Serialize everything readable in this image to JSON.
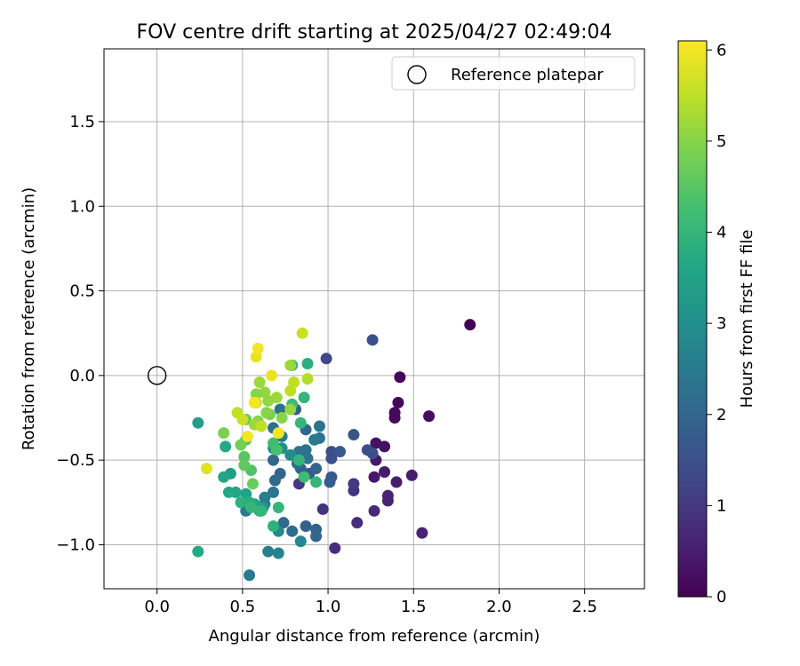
{
  "chart_data": {
    "type": "scatter",
    "title": "FOV centre drift starting at 2025/04/27 02:49:04",
    "xlabel": "Angular distance from reference (arcmin)",
    "ylabel": "Rotation from reference (arcmin)",
    "xlim": [
      -0.31,
      2.85
    ],
    "ylim": [
      -1.26,
      1.93
    ],
    "xticks": [
      0.0,
      0.5,
      1.0,
      1.5,
      2.0,
      2.5
    ],
    "xtick_labels": [
      "0.0",
      "0.5",
      "1.0",
      "1.5",
      "2.0",
      "2.5"
    ],
    "yticks": [
      -1.0,
      -0.5,
      0.0,
      0.5,
      1.0,
      1.5
    ],
    "ytick_labels": [
      "−1.0",
      "−0.5",
      "0.0",
      "0.5",
      "1.0",
      "1.5"
    ],
    "grid": true,
    "legend": {
      "position": "top-right",
      "label": "Reference platepar"
    },
    "reference_point": {
      "x": 0.0,
      "y": 0.0
    },
    "colorbar": {
      "label": "Hours from first FF file",
      "range": [
        0,
        6.1
      ],
      "ticks": [
        0,
        1,
        2,
        3,
        4,
        5,
        6
      ],
      "tick_labels": [
        "0",
        "1",
        "2",
        "3",
        "4",
        "5",
        "6"
      ],
      "colormap": "viridis"
    },
    "series": [
      {
        "points": [
          [
            1.83,
            0.3,
            0.0
          ],
          [
            1.42,
            -0.01,
            0.1
          ],
          [
            1.41,
            -0.16,
            0.1
          ],
          [
            1.39,
            -0.22,
            0.15
          ],
          [
            1.39,
            -0.25,
            0.15
          ],
          [
            1.59,
            -0.24,
            0.2
          ],
          [
            1.33,
            -0.42,
            0.3
          ],
          [
            1.28,
            -0.4,
            0.3
          ],
          [
            1.28,
            -0.5,
            0.4
          ],
          [
            1.27,
            -0.6,
            0.4
          ],
          [
            1.33,
            -0.57,
            0.45
          ],
          [
            1.4,
            -0.63,
            0.5
          ],
          [
            1.49,
            -0.59,
            0.5
          ],
          [
            1.35,
            -0.71,
            0.6
          ],
          [
            1.35,
            -0.74,
            0.6
          ],
          [
            1.27,
            -0.8,
            0.7
          ],
          [
            1.55,
            -0.93,
            0.6
          ],
          [
            1.17,
            -0.87,
            0.8
          ],
          [
            1.04,
            -1.02,
            0.8
          ],
          [
            0.97,
            -0.79,
            0.9
          ],
          [
            1.15,
            -0.68,
            0.9
          ],
          [
            1.15,
            -0.64,
            1.0
          ],
          [
            0.83,
            -0.64,
            1.0
          ],
          [
            0.99,
            0.1,
            1.3
          ],
          [
            1.26,
            0.21,
            1.5
          ],
          [
            1.23,
            -0.44,
            1.5
          ],
          [
            1.26,
            -0.46,
            1.5
          ],
          [
            1.15,
            -0.35,
            1.6
          ],
          [
            1.02,
            -0.45,
            1.5
          ],
          [
            1.02,
            -0.49,
            1.5
          ],
          [
            1.07,
            -0.45,
            1.7
          ],
          [
            1.02,
            -0.6,
            1.7
          ],
          [
            1.01,
            -0.63,
            1.8
          ],
          [
            0.89,
            -0.58,
            1.7
          ],
          [
            0.84,
            -0.55,
            1.9
          ],
          [
            0.93,
            -0.55,
            1.9
          ],
          [
            0.87,
            -0.89,
            1.9
          ],
          [
            0.93,
            -0.91,
            1.9
          ],
          [
            0.93,
            -0.95,
            2.0
          ],
          [
            0.79,
            -0.92,
            2.1
          ],
          [
            0.74,
            -0.87,
            2.1
          ],
          [
            0.82,
            -0.52,
            2.2
          ],
          [
            0.88,
            -0.49,
            2.3
          ],
          [
            0.83,
            -0.45,
            2.3
          ],
          [
            0.87,
            -0.44,
            2.3
          ],
          [
            0.95,
            -0.3,
            2.4
          ],
          [
            0.95,
            -0.37,
            2.4
          ],
          [
            0.92,
            -0.38,
            2.5
          ],
          [
            0.87,
            -0.32,
            2.0
          ],
          [
            0.81,
            -0.2,
            1.8
          ],
          [
            0.72,
            -0.2,
            2.3
          ],
          [
            0.73,
            -0.36,
            2.5
          ],
          [
            0.68,
            -0.31,
            2.2
          ],
          [
            0.68,
            -0.5,
            2.0
          ],
          [
            0.72,
            -0.58,
            2.0
          ],
          [
            0.69,
            -0.62,
            2.1
          ],
          [
            0.68,
            -0.69,
            2.4
          ],
          [
            0.63,
            -0.72,
            2.6
          ],
          [
            0.63,
            -0.76,
            2.5
          ],
          [
            0.52,
            -0.8,
            2.5
          ],
          [
            0.54,
            -1.18,
            2.5
          ],
          [
            0.65,
            -1.04,
            2.6
          ],
          [
            0.71,
            -1.05,
            2.7
          ],
          [
            0.71,
            -0.92,
            2.8
          ],
          [
            0.84,
            -0.98,
            2.8
          ],
          [
            0.78,
            -0.47,
            2.9
          ],
          [
            0.73,
            -0.43,
            3.0
          ],
          [
            0.68,
            -0.43,
            3.1
          ],
          [
            0.62,
            -0.78,
            3.3
          ],
          [
            0.6,
            -0.8,
            3.6
          ],
          [
            0.57,
            -0.76,
            3.6
          ],
          [
            0.52,
            -0.7,
            3.5
          ],
          [
            0.46,
            -0.69,
            3.6
          ],
          [
            0.42,
            -0.69,
            3.7
          ],
          [
            0.43,
            -0.58,
            3.4
          ],
          [
            0.39,
            -0.6,
            3.6
          ],
          [
            0.49,
            -0.75,
            3.9
          ],
          [
            0.54,
            -0.75,
            3.8
          ],
          [
            0.55,
            -0.78,
            4.0
          ],
          [
            0.61,
            -0.8,
            4.0
          ],
          [
            0.68,
            -0.89,
            3.9
          ],
          [
            0.71,
            -0.78,
            4.0
          ],
          [
            0.24,
            -0.28,
            3.4
          ],
          [
            0.24,
            -1.04,
            3.7
          ],
          [
            0.4,
            -0.42,
            3.7
          ],
          [
            0.88,
            0.07,
            3.8
          ],
          [
            0.79,
            0.06,
            3.9
          ],
          [
            0.86,
            -0.13,
            4.0
          ],
          [
            0.84,
            -0.28,
            4.0
          ],
          [
            0.79,
            -0.17,
            4.1
          ],
          [
            0.83,
            -0.5,
            4.0
          ],
          [
            0.93,
            -0.63,
            4.0
          ],
          [
            0.86,
            -0.6,
            4.2
          ],
          [
            0.68,
            -0.4,
            4.2
          ],
          [
            0.7,
            -0.44,
            4.3
          ],
          [
            0.55,
            -0.56,
            4.4
          ],
          [
            0.52,
            -0.38,
            4.4
          ],
          [
            0.51,
            -0.48,
            4.5
          ],
          [
            0.51,
            -0.53,
            4.6
          ],
          [
            0.56,
            -0.64,
            4.7
          ],
          [
            0.49,
            -0.41,
            4.8
          ],
          [
            0.39,
            -0.34,
            4.9
          ],
          [
            0.52,
            -0.26,
            4.7
          ],
          [
            0.66,
            -0.23,
            4.9
          ],
          [
            0.73,
            -0.25,
            5.0
          ],
          [
            0.64,
            -0.22,
            5.0
          ],
          [
            0.78,
            -0.2,
            5.1
          ],
          [
            0.65,
            -0.15,
            5.1
          ],
          [
            0.7,
            -0.13,
            5.2
          ],
          [
            0.63,
            -0.1,
            5.1
          ],
          [
            0.6,
            -0.04,
            5.2
          ],
          [
            0.58,
            -0.11,
            5.0
          ],
          [
            0.59,
            -0.27,
            5.0
          ],
          [
            0.57,
            -0.29,
            5.2
          ],
          [
            0.78,
            0.06,
            5.2
          ],
          [
            0.88,
            -0.02,
            5.4
          ],
          [
            0.8,
            -0.04,
            5.5
          ],
          [
            0.78,
            -0.09,
            5.5
          ],
          [
            0.61,
            -0.3,
            5.5
          ],
          [
            0.47,
            -0.22,
            5.5
          ],
          [
            0.5,
            -0.26,
            5.6
          ],
          [
            0.58,
            -0.16,
            5.6
          ],
          [
            0.85,
            0.25,
            5.6
          ],
          [
            0.58,
            0.11,
            5.9
          ],
          [
            0.59,
            0.16,
            6.0
          ],
          [
            0.67,
            0.0,
            5.9
          ],
          [
            0.29,
            -0.55,
            5.8
          ],
          [
            0.57,
            -0.16,
            6.0
          ],
          [
            0.53,
            -0.36,
            6.0
          ],
          [
            0.71,
            -0.34,
            6.0
          ]
        ]
      }
    ]
  }
}
